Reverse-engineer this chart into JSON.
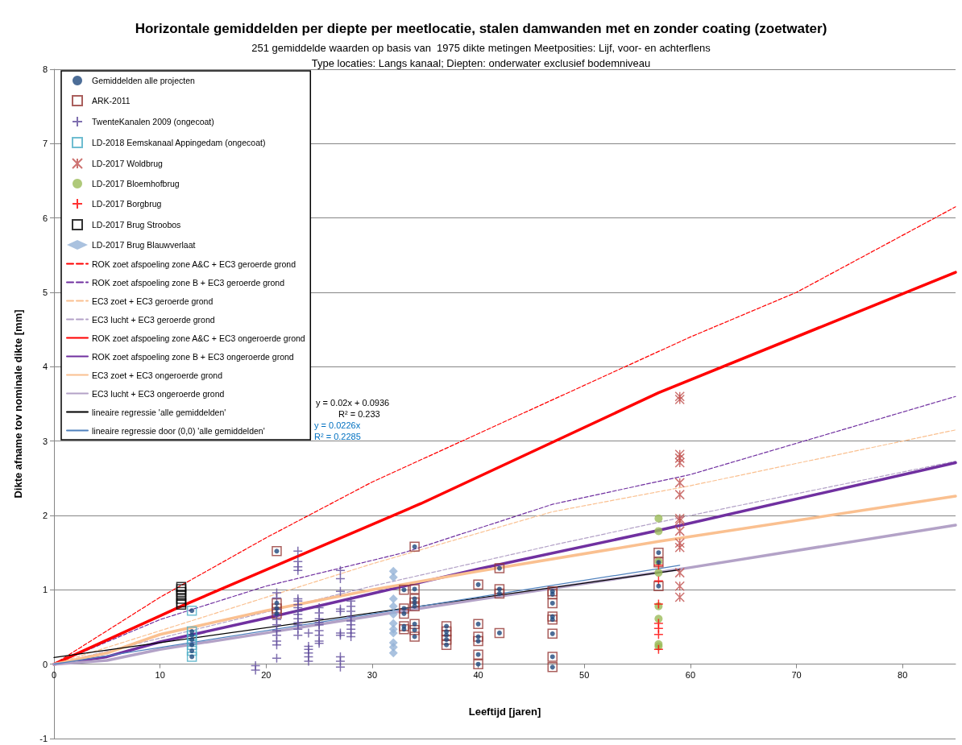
{
  "chart_data": {
    "type": "scatter",
    "title": "Horizontale gemiddelden per diepte per meetlocatie, stalen damwanden met en zonder coating (zoetwater)",
    "subtitle": "251 gemiddelde waarden op basis van  1975 dikte metingen Meetposities: Lijf, voor- en achterflens\nType locaties: Langs kanaal; Diepten: onderwater exclusief bodemniveau",
    "xlabel": "Leeftijd [jaren]",
    "ylabel": "Dikte afname tov nominale dikte [mm]",
    "xlim": [
      0,
      85
    ],
    "xticks": [
      0,
      10,
      20,
      30,
      40,
      50,
      60,
      70,
      80
    ],
    "ylim": [
      -1,
      8
    ],
    "yticks": [
      -1,
      0,
      1,
      2,
      3,
      4,
      5,
      6,
      7,
      8
    ],
    "grid": "y",
    "legend": "top left",
    "annotations": [
      "y = 0.02x + 0.0936",
      "R² = 0.233",
      "y = 0.0226x",
      "R² = 0.2285"
    ],
    "series": [
      {
        "name": "Gemiddelden alle projecten",
        "marker": "circle",
        "color": "#1f497d",
        "x": [
          21,
          21,
          21,
          21,
          33,
          33,
          33,
          33,
          33,
          34,
          34,
          34,
          34,
          34,
          34,
          34,
          34,
          37,
          37,
          37,
          37,
          37,
          40,
          40,
          40,
          40,
          40,
          40,
          42,
          42,
          42,
          42,
          47,
          47,
          47,
          47,
          47,
          47,
          47,
          47,
          57,
          57,
          57,
          13,
          13,
          13,
          13,
          13,
          13,
          13
        ],
        "values": [
          1.52,
          0.82,
          0.75,
          0.68,
          1.0,
          0.75,
          0.68,
          0.51,
          0.47,
          1.58,
          1.01,
          0.88,
          0.83,
          0.78,
          0.54,
          0.46,
          0.37,
          0.51,
          0.44,
          0.39,
          0.33,
          0.26,
          1.07,
          0.54,
          0.37,
          0.31,
          0.13,
          0.0,
          1.29,
          1.01,
          0.95,
          0.42,
          0.98,
          0.94,
          0.82,
          0.64,
          0.6,
          0.41,
          0.1,
          -0.04,
          1.5,
          1.37,
          1.05,
          0.72,
          0.44,
          0.39,
          0.33,
          0.26,
          0.18,
          0.1
        ]
      },
      {
        "name": "ARK-2011",
        "marker": "square",
        "color": "#953735",
        "x": [
          21,
          21,
          21,
          21,
          33,
          33,
          33,
          33,
          33,
          34,
          34,
          34,
          34,
          34,
          34,
          34,
          34,
          37,
          37,
          37,
          37,
          37,
          40,
          40,
          40,
          40,
          40,
          40,
          42,
          42,
          42,
          42,
          47,
          47,
          47,
          47,
          47,
          47,
          47,
          47,
          57,
          57,
          57
        ],
        "values": [
          1.52,
          0.82,
          0.75,
          0.68,
          1.0,
          0.75,
          0.68,
          0.51,
          0.47,
          1.58,
          1.01,
          0.88,
          0.83,
          0.78,
          0.54,
          0.46,
          0.37,
          0.51,
          0.44,
          0.39,
          0.33,
          0.26,
          1.07,
          0.54,
          0.37,
          0.31,
          0.13,
          0.0,
          1.29,
          1.01,
          0.95,
          0.42,
          0.98,
          0.94,
          0.82,
          0.64,
          0.6,
          0.41,
          0.1,
          -0.04,
          1.5,
          1.37,
          1.05
        ]
      },
      {
        "name": "TwenteKanalen 2009 (ongecoat)",
        "marker": "cross",
        "color": "#5f4b9b",
        "x": [
          19,
          19,
          21,
          21,
          21,
          21,
          21,
          21,
          21,
          21,
          21,
          21,
          21,
          23,
          23,
          23,
          23,
          23,
          23,
          23,
          23,
          23,
          23,
          23,
          23,
          23,
          23,
          23,
          24,
          24,
          24,
          24,
          24,
          24,
          25,
          25,
          25,
          25,
          25,
          25,
          25,
          25,
          25,
          27,
          27,
          27,
          27,
          27,
          27,
          27,
          27,
          27,
          27,
          28,
          28,
          28,
          28,
          28,
          28,
          28,
          28,
          28
        ],
        "values": [
          -0.02,
          -0.08,
          0.96,
          0.89,
          0.74,
          0.67,
          0.6,
          0.53,
          0.45,
          0.39,
          0.31,
          0.26,
          0.08,
          1.52,
          1.38,
          1.31,
          1.26,
          0.88,
          0.85,
          0.8,
          0.76,
          0.71,
          0.67,
          0.61,
          0.56,
          0.53,
          0.47,
          0.39,
          0.42,
          0.24,
          0.2,
          0.15,
          0.1,
          0.04,
          0.76,
          0.69,
          0.61,
          0.56,
          0.53,
          0.45,
          0.39,
          0.31,
          0.28,
          1.26,
          1.15,
          0.98,
          0.74,
          0.71,
          0.42,
          0.39,
          0.1,
          0.04,
          -0.04,
          0.85,
          0.78,
          0.71,
          0.64,
          0.58,
          0.53,
          0.47,
          0.42,
          0.37
        ]
      },
      {
        "name": "LD-2018 Eemskanaal Appingedam (ongecoat)",
        "marker": "square",
        "color": "#4bacc6",
        "x": [
          13,
          13,
          13,
          13,
          13,
          13,
          13
        ],
        "values": [
          0.72,
          0.44,
          0.39,
          0.33,
          0.26,
          0.18,
          0.1
        ]
      },
      {
        "name": "LD-2017 Woldbrug",
        "color": "#c0504d",
        "x": [
          59,
          59,
          59,
          59,
          59,
          59,
          59,
          59,
          59,
          59,
          59,
          59,
          59,
          59,
          59
        ],
        "values": [
          3.6,
          3.56,
          2.82,
          2.77,
          2.71,
          2.44,
          2.28,
          1.96,
          1.93,
          1.79,
          1.63,
          1.57,
          1.23,
          1.05,
          0.9
        ]
      },
      {
        "name": "LD-2017 Bloemhofbrug",
        "marker": "circle",
        "color": "#9bbb59",
        "x": [
          57,
          57,
          57,
          57,
          57,
          57,
          57,
          57
        ],
        "values": [
          1.96,
          1.79,
          1.38,
          1.23,
          0.78,
          0.61,
          0.27,
          0.24
        ]
      },
      {
        "name": "LD-2017 Borgbrug",
        "marker": "cross",
        "color": "#ff0000",
        "x": [
          57,
          57,
          57,
          57,
          57,
          57,
          57
        ],
        "values": [
          1.33,
          1.12,
          0.81,
          0.55,
          0.48,
          0.4,
          0.2
        ]
      },
      {
        "name": "LD-2017 Brug Stroobos",
        "marker": "square",
        "color": "#000000",
        "x": [
          12,
          12,
          12,
          12,
          12,
          12,
          12
        ],
        "values": [
          1.04,
          1.01,
          0.97,
          0.93,
          0.88,
          0.83,
          0.8
        ]
      },
      {
        "name": "LD-2017 Brug Blauwverlaat",
        "marker": "diamond",
        "color": "#95b3d7",
        "x": [
          32,
          32,
          32,
          32,
          32,
          32,
          32,
          32,
          32,
          32,
          32
        ],
        "values": [
          1.25,
          1.17,
          0.88,
          0.78,
          0.67,
          0.55,
          0.47,
          0.42,
          0.29,
          0.23,
          0.15
        ]
      },
      {
        "name": "ROK zoet afspoeling zone A&C + EC3 geroerde grond",
        "type": "line",
        "line_style": "dashed",
        "color": "#ff0000",
        "x": [
          0,
          10,
          20,
          30,
          40,
          50,
          60,
          70,
          85
        ],
        "values": [
          0,
          0.9,
          1.7,
          2.45,
          3.1,
          3.75,
          4.4,
          5.0,
          6.15
        ]
      },
      {
        "name": "ROK zoet afspoeling zone B + EC3 geroerde grond",
        "type": "line",
        "line_style": "dashed",
        "color": "#7030a0",
        "x": [
          0,
          10,
          20,
          33,
          47,
          60,
          85
        ],
        "values": [
          0,
          0.6,
          1.05,
          1.5,
          2.15,
          2.55,
          3.6
        ]
      },
      {
        "name": "EC3 zoet + EC3 geroerde grond",
        "type": "line",
        "line_style": "dashed",
        "color": "#fac090",
        "x": [
          0,
          10,
          20,
          30,
          47,
          60,
          85
        ],
        "values": [
          0,
          0.45,
          0.9,
          1.35,
          2.05,
          2.4,
          3.15
        ]
      },
      {
        "name": "EC3 lucht + EC3 geroerde grond",
        "type": "line",
        "line_style": "dashed",
        "color": "#b3a2c7",
        "x": [
          0,
          10,
          20,
          30,
          47,
          60,
          85
        ],
        "values": [
          0,
          0.35,
          0.7,
          1.05,
          1.6,
          2.0,
          2.73
        ]
      },
      {
        "name": "ROK zoet afspoeling zone A&C + EC3 ongeroerde grond",
        "type": "line",
        "line_style": "solid",
        "color": "#ff0000",
        "x": [
          0,
          12,
          34.6,
          57,
          85
        ],
        "values": [
          0,
          0.78,
          2.16,
          3.65,
          5.27
        ]
      },
      {
        "name": "ROK zoet afspoeling zone B + EC3 ongeroerde grond",
        "type": "line",
        "line_style": "solid",
        "color": "#7030a0",
        "x": [
          0,
          5,
          10,
          20,
          30,
          40,
          57,
          85
        ],
        "values": [
          0,
          0.1,
          0.3,
          0.62,
          0.95,
          1.28,
          1.8,
          2.71
        ]
      },
      {
        "name": "EC3 zoet + EC3 ongeroerde grond",
        "type": "line",
        "line_style": "solid",
        "color": "#fac090",
        "x": [
          0,
          5,
          10,
          20,
          30,
          40,
          57,
          85
        ],
        "values": [
          0,
          0.15,
          0.4,
          0.72,
          1.0,
          1.25,
          1.65,
          2.26
        ]
      },
      {
        "name": "EC3 lucht + EC3 ongeroerde grond",
        "type": "line",
        "line_style": "solid",
        "color": "#b3a2c7",
        "x": [
          0,
          5,
          10,
          20,
          30,
          40,
          60,
          85
        ],
        "values": [
          0,
          0.05,
          0.2,
          0.42,
          0.65,
          0.87,
          1.3,
          1.87
        ]
      },
      {
        "name": "lineaire regressie 'alle gemiddelden'",
        "type": "line",
        "line_style": "solid",
        "color": "#000000",
        "x": [
          0,
          59
        ],
        "values": [
          0.09,
          1.27
        ]
      },
      {
        "name": "lineaire regressie door (0,0) 'alle gemiddelden'",
        "type": "line",
        "line_style": "solid",
        "color": "#4f81bd",
        "x": [
          0,
          59
        ],
        "values": [
          0,
          1.33
        ]
      }
    ]
  }
}
